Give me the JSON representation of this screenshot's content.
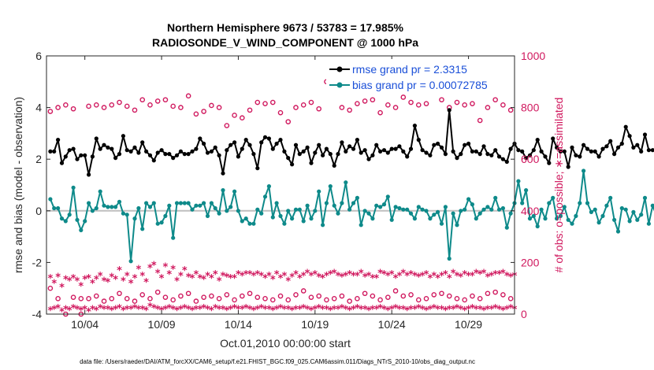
{
  "chart_data": {
    "type": "line",
    "title": "Northern Hemisphere 9673 / 53783 = 17.985%",
    "subtitle": "RADIOSONDE_V_WIND_COMPONENT @ 1000 hPa",
    "xlabel": "Oct.01,2010 00:00:00 start",
    "ylabel_left": "rmse and bias (model - observation)",
    "ylabel_right": "# of obs: o=possible; ∗=assimilated",
    "footer": "data file: /Users/raeder/DAI/ATM_forcXX/CAM6_setup/f.e21.FHIST_BGC.f09_025.CAM6assim.011/Diags_NTrS_2010-10/obs_diag_output.nc",
    "x_range_days": [
      1.5,
      32.0
    ],
    "x_ticks": [
      {
        "day": 4,
        "label": "10/04"
      },
      {
        "day": 9,
        "label": "10/09"
      },
      {
        "day": 14,
        "label": "10/14"
      },
      {
        "day": 19,
        "label": "10/19"
      },
      {
        "day": 24,
        "label": "10/24"
      },
      {
        "day": 29,
        "label": "10/29"
      }
    ],
    "ylim_left": [
      -4,
      6
    ],
    "yticks_left": [
      -4,
      -2,
      0,
      2,
      4,
      6
    ],
    "ylim_right": [
      0,
      1000
    ],
    "yticks_right": [
      0,
      200,
      400,
      600,
      800,
      1000
    ],
    "grid": false,
    "legend_position": "top-right",
    "colors": {
      "rmse": "#000000",
      "bias": "#0e8a8a",
      "obs": "#d0185e",
      "zero_line": "#bfbfbf",
      "legend_text": "#1a4fd8"
    },
    "x_start_day": 1.75,
    "x_step_days": 0.25,
    "series": [
      {
        "name": "rmse grand pr = 2.3315",
        "axis": "left",
        "values": [
          2.3,
          2.3,
          2.75,
          1.85,
          2.1,
          2.35,
          2.4,
          2.0,
          2.15,
          2.15,
          1.4,
          2.1,
          2.8,
          2.4,
          2.55,
          2.45,
          2.4,
          2.05,
          2.2,
          2.9,
          2.35,
          2.3,
          2.45,
          2.25,
          2.65,
          2.3,
          2.15,
          1.95,
          2.25,
          2.35,
          2.2,
          2.2,
          2.05,
          2.15,
          2.3,
          2.2,
          2.2,
          2.3,
          2.4,
          2.8,
          2.6,
          2.25,
          2.3,
          2.45,
          2.15,
          1.45,
          2.35,
          2.55,
          2.65,
          2.1,
          2.4,
          2.75,
          2.55,
          2.2,
          1.65,
          2.65,
          2.85,
          2.8,
          2.4,
          2.6,
          2.75,
          2.3,
          2.05,
          1.8,
          2.55,
          2.2,
          2.3,
          2.45,
          1.85,
          2.25,
          2.55,
          2.15,
          2.4,
          2.2,
          1.75,
          2.2,
          2.65,
          2.3,
          2.5,
          2.4,
          2.75,
          2.25,
          2.35,
          2.0,
          2.15,
          2.55,
          2.3,
          2.35,
          2.25,
          2.4,
          2.4,
          2.5,
          2.3,
          2.1,
          2.4,
          3.3,
          2.75,
          2.35,
          2.25,
          2.15,
          2.55,
          2.6,
          2.45,
          2.2,
          3.9,
          2.3,
          2.05,
          2.2,
          2.55,
          2.6,
          2.3,
          2.3,
          2.2,
          2.5,
          2.2,
          2.15,
          2.35,
          2.1,
          2.0,
          1.9,
          2.4,
          2.6,
          2.35,
          2.3,
          2.05,
          2.15,
          2.35,
          2.75,
          2.3,
          2.1,
          1.85,
          2.8,
          2.45,
          2.3,
          2.3,
          1.7,
          2.45,
          2.15,
          2.1,
          2.55,
          2.4,
          2.3,
          2.3,
          2.1,
          2.4,
          2.5,
          2.7,
          2.2,
          2.45,
          2.6,
          3.25,
          2.9,
          2.45,
          2.55,
          2.3,
          2.95,
          2.35,
          2.35,
          2.3,
          2.3,
          2.35,
          2.5,
          2.3,
          2.3,
          2.3
        ]
      },
      {
        "name": "bias grand pr = 0.00072785",
        "axis": "left",
        "values": [
          0.45,
          0.1,
          0.1,
          -0.3,
          -0.4,
          -0.15,
          0.9,
          -0.35,
          -0.75,
          -0.4,
          0.3,
          0.0,
          0.1,
          0.75,
          0.2,
          0.15,
          0.15,
          0.15,
          0.35,
          -0.1,
          -0.15,
          -1.95,
          -0.3,
          0.1,
          -0.7,
          0.3,
          0.15,
          0.3,
          -0.5,
          -0.45,
          -0.2,
          0.2,
          -1.05,
          0.3,
          0.3,
          0.3,
          0.3,
          0.05,
          0.2,
          0.2,
          0.3,
          -0.2,
          0.3,
          0.1,
          -0.1,
          0.8,
          0.0,
          0.15,
          0.75,
          0.0,
          -0.4,
          -0.3,
          -0.5,
          -0.5,
          0.05,
          -0.1,
          0.55,
          0.95,
          -0.25,
          0.3,
          -0.2,
          -0.5,
          0.0,
          -0.3,
          0.05,
          0.05,
          -0.4,
          0.2,
          -0.3,
          0.0,
          0.75,
          -0.55,
          0.3,
          0.95,
          0.2,
          -0.1,
          0.3,
          1.1,
          0.05,
          0.3,
          0.5,
          -0.55,
          0.0,
          -0.1,
          -0.3,
          0.2,
          0.15,
          0.25,
          0.55,
          -0.35,
          0.15,
          0.1,
          0.05,
          0.05,
          -0.1,
          -0.3,
          0.15,
          0.05,
          0.0,
          -0.3,
          -0.15,
          -0.05,
          -0.5,
          0.15,
          -1.85,
          -0.1,
          -0.55,
          0.0,
          0.05,
          0.45,
          0.25,
          -0.3,
          -0.1,
          0.05,
          0.15,
          0.05,
          0.5,
          0.05,
          0.1,
          -0.65,
          -0.1,
          0.3,
          1.15,
          0.3,
          0.8,
          -0.3,
          -0.2,
          -0.6,
          0.05,
          -0.3,
          0.3,
          0.5,
          -0.3,
          -0.2,
          0.15,
          -0.35,
          -0.5,
          -0.2,
          0.3,
          1.55,
          0.3,
          -0.05,
          0.05,
          -0.45,
          -0.2,
          0.2,
          0.5,
          -0.35,
          -0.8,
          0.1,
          0.05,
          -0.4,
          -0.05,
          -0.35,
          -0.15,
          0.5,
          -0.5,
          0.2,
          -0.2,
          -0.2,
          -0.1,
          0.15,
          -0.1,
          0.55,
          0.55
        ]
      },
      {
        "name": "obs possible",
        "axis": "right",
        "marker": "o",
        "x_start_day": 1.75,
        "x_step_days": 0.5,
        "values": [
          785,
          800,
          810,
          795,
          0,
          805,
          810,
          800,
          810,
          820,
          805,
          790,
          830,
          810,
          825,
          830,
          805,
          800,
          845,
          775,
          785,
          808,
          800,
          730,
          770,
          760,
          790,
          820,
          815,
          820,
          780,
          745,
          800,
          810,
          820,
          795,
          900,
          880,
          800,
          790,
          815,
          825,
          830,
          780,
          810,
          800,
          840,
          820,
          810,
          815,
          870,
          830,
          800,
          820,
          810,
          815,
          750,
          800,
          830,
          810,
          790,
          770
        ]
      },
      {
        "name": "obs possible low",
        "axis": "right",
        "marker": "o",
        "x_start_day": 1.75,
        "x_step_days": 0.5,
        "values": [
          100,
          60,
          0,
          65,
          60,
          60,
          70,
          50,
          60,
          80,
          60,
          50,
          75,
          60,
          85,
          65,
          55,
          70,
          80,
          50,
          65,
          70,
          60,
          75,
          55,
          70,
          80,
          65,
          60,
          55,
          70,
          55,
          75,
          90,
          65,
          70,
          55,
          60,
          70,
          50,
          60,
          80,
          70,
          55,
          65,
          90,
          70,
          75,
          55,
          60,
          75,
          80,
          70,
          60,
          55,
          70,
          60,
          80,
          85,
          75,
          60,
          50
        ]
      },
      {
        "name": "obs assimilated high",
        "axis": "right",
        "marker": "*",
        "x_start_day": 1.75,
        "x_step_days": 0.25,
        "values": [
          140,
          120,
          145,
          105,
          135,
          130,
          140,
          130,
          110,
          135,
          140,
          120,
          135,
          150,
          130,
          125,
          145,
          135,
          170,
          130,
          150,
          120,
          140,
          175,
          150,
          125,
          180,
          190,
          160,
          140,
          185,
          155,
          175,
          130,
          150,
          170,
          145,
          140,
          155,
          140,
          135,
          150,
          140,
          155,
          130,
          150,
          145,
          140,
          140,
          155,
          150,
          155,
          155,
          150,
          155,
          150,
          140,
          150,
          135,
          155,
          140,
          150,
          130,
          145,
          155,
          140,
          150,
          160,
          150,
          155,
          145,
          140,
          150,
          155,
          160,
          150,
          145,
          150,
          155,
          150,
          150,
          160,
          145,
          150,
          140,
          140,
          160,
          155,
          150,
          155,
          140,
          150,
          160,
          150,
          155,
          150,
          145,
          150,
          155,
          140,
          150,
          140,
          150,
          155,
          140,
          160,
          150,
          145,
          155,
          150,
          150,
          160,
          155,
          160,
          145,
          150,
          155,
          155,
          160,
          150,
          145,
          150,
          140,
          155,
          150,
          155,
          160,
          150,
          155,
          155,
          150,
          150,
          145,
          160,
          150,
          155,
          150,
          150,
          145,
          150,
          135,
          140,
          150,
          155,
          150,
          160,
          145,
          140,
          150,
          140,
          150,
          155,
          150,
          150,
          140,
          145,
          160,
          150,
          130,
          140,
          110,
          150,
          130
        ]
      },
      {
        "name": "obs assimilated low",
        "axis": "right",
        "marker": "*",
        "x_start_day": 1.75,
        "x_step_days": 0.25,
        "values": [
          15,
          20,
          25,
          10,
          20,
          15,
          25,
          20,
          15,
          20,
          10,
          20,
          15,
          25,
          20,
          20,
          15,
          20,
          25,
          15,
          20,
          20,
          25,
          20,
          20,
          15,
          30,
          25,
          20,
          15,
          20,
          25,
          20,
          15,
          20,
          25,
          20,
          15,
          20,
          20,
          25,
          20,
          15,
          25,
          20,
          20,
          15,
          20,
          25,
          20,
          20,
          25,
          20,
          15,
          20,
          25,
          20,
          20,
          15,
          20,
          25,
          20,
          20,
          15,
          20,
          20,
          25,
          20,
          15,
          20,
          25,
          20,
          20,
          15,
          20,
          20,
          25,
          20,
          15,
          20,
          25,
          20,
          20,
          15,
          20,
          20,
          25,
          20,
          15,
          20,
          25,
          20,
          20,
          15,
          20,
          20,
          25,
          20,
          15,
          20,
          25,
          20,
          20,
          15,
          20,
          20,
          25,
          20,
          15,
          20,
          25,
          20,
          20,
          15,
          20,
          20,
          25,
          20,
          15,
          20,
          25,
          20,
          20,
          15,
          20,
          20,
          25,
          20,
          15,
          20,
          25,
          20,
          20,
          15,
          20,
          20,
          25,
          20,
          15,
          20,
          25,
          20,
          20,
          15,
          20,
          20,
          25,
          20,
          15,
          20,
          25,
          20,
          20,
          15,
          20,
          20,
          25,
          20,
          15,
          20,
          25,
          20,
          20,
          15,
          10,
          5,
          0
        ]
      }
    ]
  }
}
